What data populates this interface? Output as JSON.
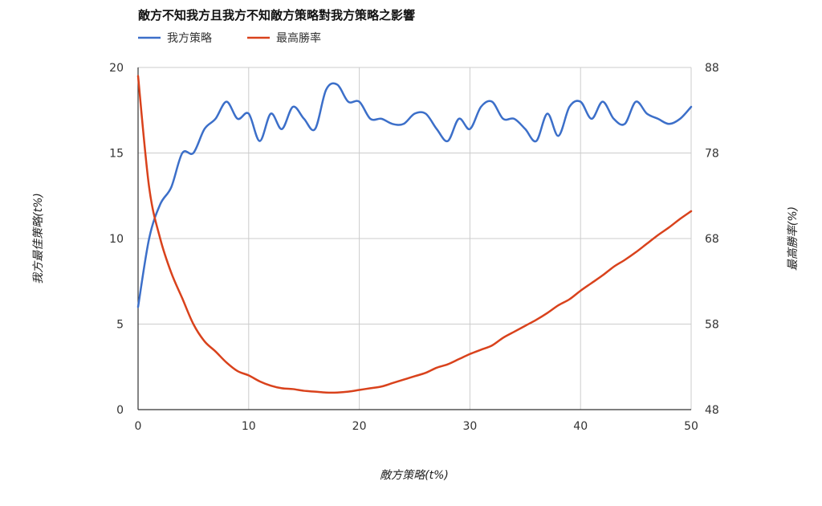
{
  "chart_data": {
    "type": "line",
    "title": "敵方不知我方且我方不知敵方策略對我方策略之影響",
    "xlabel": "敵方策略(t%)",
    "ylabel_left": "我方最佳策略(t%)",
    "ylabel_right": "最高勝率(%)",
    "xlim": [
      0,
      50
    ],
    "ylim_left": [
      0,
      20
    ],
    "ylim_right": [
      48,
      88
    ],
    "x_ticks": [
      "0",
      "10",
      "20",
      "30",
      "40",
      "50"
    ],
    "y_left_ticks": [
      "0",
      "5",
      "10",
      "15",
      "20"
    ],
    "y_right_ticks": [
      "48",
      "58",
      "68",
      "78",
      "88"
    ],
    "grid": true,
    "legend_position": "top-left",
    "series": [
      {
        "name": "我方策略",
        "axis": "left",
        "color": "#3c6fc9",
        "x": [
          0,
          1,
          2,
          3,
          4,
          5,
          6,
          7,
          8,
          9,
          10,
          11,
          12,
          13,
          14,
          15,
          16,
          17,
          18,
          19,
          20,
          21,
          22,
          23,
          24,
          25,
          26,
          27,
          28,
          29,
          30,
          31,
          32,
          33,
          34,
          35,
          36,
          37,
          38,
          39,
          40,
          41,
          42,
          43,
          44,
          45,
          46,
          47,
          48,
          49,
          50
        ],
        "values": [
          6,
          10,
          12,
          13,
          15,
          15,
          16.4,
          17,
          18,
          17,
          17.3,
          15.7,
          17.3,
          16.4,
          17.7,
          17,
          16.4,
          18.7,
          19,
          18,
          18,
          17,
          17,
          16.7,
          16.7,
          17.3,
          17.3,
          16.4,
          15.7,
          17,
          16.4,
          17.7,
          18,
          17,
          17,
          16.4,
          15.7,
          17.3,
          16,
          17.7,
          18,
          17,
          18,
          17,
          16.7,
          18,
          17.3,
          17,
          16.7,
          17,
          17.7
        ]
      },
      {
        "name": "最高勝率",
        "axis": "right",
        "color": "#d9421c",
        "x": [
          0,
          1,
          2,
          3,
          4,
          5,
          6,
          7,
          8,
          9,
          10,
          11,
          12,
          13,
          14,
          15,
          16,
          17,
          18,
          19,
          20,
          21,
          22,
          23,
          24,
          25,
          26,
          27,
          28,
          29,
          30,
          31,
          32,
          33,
          34,
          35,
          36,
          37,
          38,
          39,
          40,
          41,
          42,
          43,
          44,
          45,
          46,
          47,
          48,
          49,
          50
        ],
        "values": [
          87,
          74,
          68,
          64,
          61,
          58,
          56,
          54.8,
          53.5,
          52.5,
          52,
          51.3,
          50.8,
          50.5,
          50.4,
          50.2,
          50.1,
          50,
          50,
          50.1,
          50.3,
          50.5,
          50.7,
          51.1,
          51.5,
          51.9,
          52.3,
          52.9,
          53.3,
          53.9,
          54.5,
          55,
          55.5,
          56.4,
          57.1,
          57.8,
          58.5,
          59.3,
          60.2,
          60.9,
          61.9,
          62.8,
          63.7,
          64.7,
          65.5,
          66.4,
          67.4,
          68.4,
          69.3,
          70.3,
          71.2
        ]
      }
    ]
  }
}
